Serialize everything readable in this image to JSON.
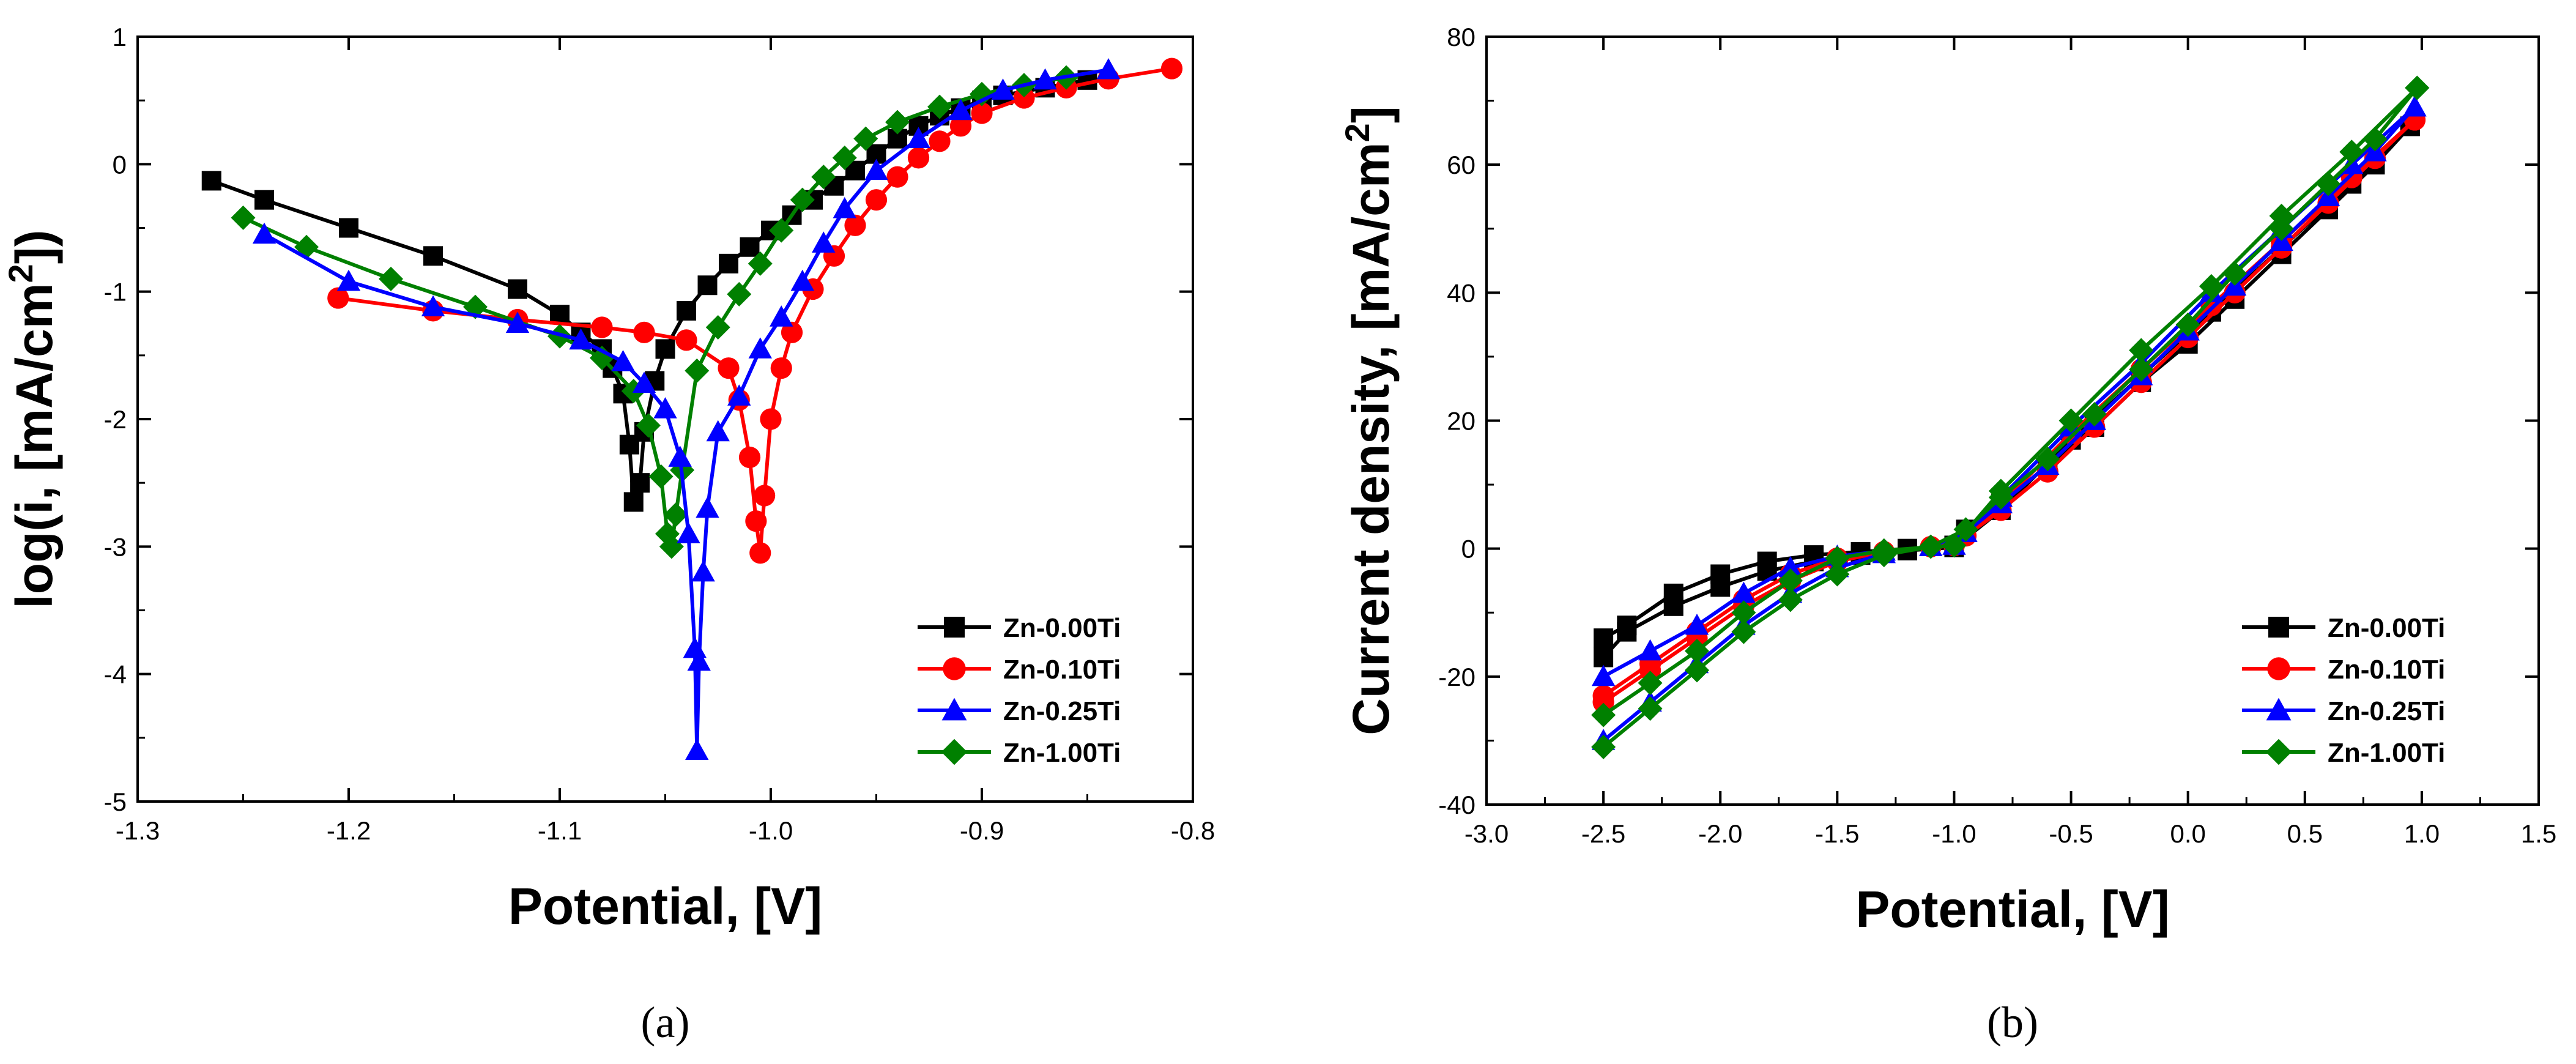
{
  "chart_data": [
    {
      "type": "line",
      "panel_label": "(a)",
      "xlabel": "Potential, [V]",
      "ylabel_main": "log(i, [mA/cm",
      "ylabel_sup": "2",
      "ylabel_tail": "])",
      "xlim": [
        -1.3,
        -0.8
      ],
      "ylim": [
        -5,
        1
      ],
      "xticks": [
        -1.3,
        -1.2,
        -1.1,
        -1.0,
        -0.9,
        -0.8
      ],
      "yticks": [
        -5,
        -4,
        -3,
        -2,
        -1,
        0,
        1
      ],
      "xtick_labels": [
        "-1.3",
        "-1.2",
        "-1.1",
        "-1.0",
        "-0.9",
        "-0.8"
      ],
      "ytick_labels": [
        "-5",
        "-4",
        "-3",
        "-2",
        "-1",
        "0",
        "1"
      ],
      "legend_position": "bottom-right",
      "series": [
        {
          "name": "Zn-0.00Ti",
          "color": "#000000",
          "marker": "square",
          "x": [
            -1.265,
            -1.24,
            -1.2,
            -1.16,
            -1.12,
            -1.1,
            -1.09,
            -1.08,
            -1.075,
            -1.07,
            -1.067,
            -1.065,
            -1.062,
            -1.06,
            -1.055,
            -1.05,
            -1.04,
            -1.03,
            -1.02,
            -1.01,
            -1.0,
            -0.99,
            -0.98,
            -0.97,
            -0.96,
            -0.95,
            -0.94,
            -0.93,
            -0.92,
            -0.91,
            -0.9,
            -0.89,
            -0.87,
            -0.85
          ],
          "y": [
            -0.13,
            -0.28,
            -0.5,
            -0.72,
            -0.98,
            -1.18,
            -1.32,
            -1.45,
            -1.6,
            -1.8,
            -2.2,
            -2.65,
            -2.5,
            -2.1,
            -1.7,
            -1.45,
            -1.15,
            -0.95,
            -0.78,
            -0.65,
            -0.52,
            -0.4,
            -0.28,
            -0.17,
            -0.05,
            0.08,
            0.2,
            0.3,
            0.38,
            0.44,
            0.5,
            0.54,
            0.6,
            0.66
          ]
        },
        {
          "name": "Zn-0.10Ti",
          "color": "#ff0000",
          "marker": "circle",
          "x": [
            -1.205,
            -1.16,
            -1.12,
            -1.08,
            -1.06,
            -1.04,
            -1.02,
            -1.015,
            -1.01,
            -1.007,
            -1.005,
            -1.003,
            -1.0,
            -0.995,
            -0.99,
            -0.98,
            -0.97,
            -0.96,
            -0.95,
            -0.94,
            -0.93,
            -0.92,
            -0.91,
            -0.9,
            -0.88,
            -0.86,
            -0.84,
            -0.81
          ],
          "y": [
            -1.05,
            -1.15,
            -1.22,
            -1.28,
            -1.32,
            -1.38,
            -1.6,
            -1.85,
            -2.3,
            -2.8,
            -3.05,
            -2.6,
            -2.0,
            -1.6,
            -1.32,
            -0.98,
            -0.72,
            -0.48,
            -0.28,
            -0.1,
            0.05,
            0.18,
            0.3,
            0.4,
            0.52,
            0.6,
            0.67,
            0.75
          ]
        },
        {
          "name": "Zn-1.00Ti",
          "color": "#008000",
          "marker": "diamond",
          "x": [
            -1.25,
            -1.22,
            -1.18,
            -1.14,
            -1.1,
            -1.08,
            -1.065,
            -1.058,
            -1.052,
            -1.049,
            -1.047,
            -1.045,
            -1.042,
            -1.035,
            -1.025,
            -1.015,
            -1.005,
            -0.995,
            -0.985,
            -0.975,
            -0.965,
            -0.955,
            -0.94,
            -0.92,
            -0.9,
            -0.88,
            -0.86
          ],
          "y": [
            -0.42,
            -0.65,
            -0.9,
            -1.12,
            -1.35,
            -1.52,
            -1.78,
            -2.05,
            -2.45,
            -2.9,
            -3.0,
            -2.75,
            -2.4,
            -1.62,
            -1.28,
            -1.02,
            -0.78,
            -0.52,
            -0.28,
            -0.1,
            0.05,
            0.2,
            0.33,
            0.45,
            0.55,
            0.62,
            0.68
          ]
        },
        {
          "name": "Zn-0.25Ti",
          "color": "#0000ff",
          "marker": "triangle",
          "x": [
            -1.24,
            -1.2,
            -1.16,
            -1.12,
            -1.09,
            -1.07,
            -1.06,
            -1.05,
            -1.043,
            -1.039,
            -1.036,
            -1.035,
            -1.034,
            -1.032,
            -1.03,
            -1.025,
            -1.015,
            -1.005,
            -0.995,
            -0.985,
            -0.975,
            -0.965,
            -0.95,
            -0.93,
            -0.91,
            -0.89,
            -0.87,
            -0.84
          ],
          "y": [
            -0.55,
            -0.92,
            -1.12,
            -1.25,
            -1.38,
            -1.55,
            -1.72,
            -1.92,
            -2.3,
            -2.9,
            -3.8,
            -4.6,
            -3.9,
            -3.2,
            -2.7,
            -2.1,
            -1.82,
            -1.45,
            -1.2,
            -0.92,
            -0.62,
            -0.35,
            -0.05,
            0.2,
            0.42,
            0.58,
            0.66,
            0.74
          ]
        }
      ]
    },
    {
      "type": "line",
      "panel_label": "(b)",
      "xlabel": "Potential, [V]",
      "ylabel_main": "Current density, [mA/cm",
      "ylabel_sup": "2",
      "ylabel_tail": "]",
      "xlim": [
        -3.0,
        1.5
      ],
      "ylim": [
        -40,
        80
      ],
      "xticks": [
        -3.0,
        -2.5,
        -2.0,
        -1.5,
        -1.0,
        -0.5,
        0.0,
        0.5,
        1.0,
        1.5
      ],
      "yticks": [
        -40,
        -20,
        0,
        20,
        40,
        60,
        80
      ],
      "xtick_labels": [
        "-3.0",
        "-2.5",
        "-2.0",
        "-1.5",
        "-1.0",
        "-0.5",
        "0.0",
        "0.5",
        "1.0",
        "1.5"
      ],
      "ytick_labels": [
        "-40",
        "-20",
        "0",
        "20",
        "40",
        "60",
        "80"
      ],
      "legend_position": "bottom-right",
      "series": [
        {
          "name": "Zn-0.00Ti",
          "color": "#000000",
          "marker": "square",
          "x": [
            -2.5,
            -2.4,
            -2.2,
            -2.0,
            -1.8,
            -1.6,
            -1.4,
            -1.2,
            -1.0,
            -0.95,
            -0.8,
            -0.6,
            -0.4,
            -0.2,
            0.0,
            0.2,
            0.4,
            0.6,
            0.8,
            0.95,
            0.95,
            0.7,
            0.4,
            0.1,
            -0.2,
            -0.5,
            -0.8,
            -1.0,
            -1.2,
            -1.4,
            -1.6,
            -1.8,
            -2.0,
            -2.2,
            -2.4,
            -2.5
          ],
          "y": [
            -14,
            -12,
            -7,
            -4,
            -2,
            -1,
            -0.5,
            0,
            0.5,
            3,
            7,
            13,
            19,
            26,
            32,
            39,
            46,
            53,
            60,
            66,
            66,
            57,
            47,
            37,
            27,
            17,
            6,
            0.2,
            -0.3,
            -1,
            -2,
            -3.5,
            -6,
            -9,
            -13,
            -17
          ]
        },
        {
          "name": "Zn-0.10Ti",
          "color": "#ff0000",
          "marker": "circle",
          "x": [
            -2.5,
            -2.3,
            -2.1,
            -1.9,
            -1.7,
            -1.5,
            -1.3,
            -1.1,
            -0.95,
            -0.8,
            -0.6,
            -0.4,
            -0.2,
            0.0,
            0.2,
            0.4,
            0.6,
            0.8,
            0.97,
            0.97,
            0.7,
            0.4,
            0.1,
            -0.2,
            -0.5,
            -0.8,
            -1.0,
            -1.3,
            -1.5,
            -1.7,
            -1.9,
            -2.1,
            -2.3,
            -2.5
          ],
          "y": [
            -24,
            -19,
            -14,
            -9,
            -5,
            -2,
            -0.5,
            0.3,
            2,
            6,
            12,
            19,
            26,
            33,
            40,
            47,
            54,
            61,
            67,
            67,
            58,
            48,
            38,
            28,
            18,
            7,
            0.5,
            -0.5,
            -1.5,
            -4,
            -8,
            -13,
            -18,
            -23
          ]
        },
        {
          "name": "Zn-0.25Ti",
          "color": "#0000ff",
          "marker": "triangle",
          "x": [
            -2.5,
            -2.3,
            -2.1,
            -1.9,
            -1.7,
            -1.5,
            -1.3,
            -1.1,
            -0.95,
            -0.8,
            -0.6,
            -0.4,
            -0.2,
            0.0,
            0.2,
            0.4,
            0.6,
            0.8,
            0.97,
            0.97,
            0.7,
            0.4,
            0.1,
            -0.2,
            -0.5,
            -0.8,
            -1.0,
            -1.3,
            -1.5,
            -1.7,
            -1.9,
            -2.1,
            -2.3,
            -2.5
          ],
          "y": [
            -30,
            -24,
            -18,
            -12,
            -7,
            -3,
            -0.8,
            0.3,
            2.5,
            7,
            13,
            20,
            27,
            34,
            41,
            48,
            55,
            62,
            69,
            69,
            60,
            50,
            40,
            29,
            19,
            8,
            0.5,
            -0.4,
            -1.2,
            -3,
            -7,
            -12,
            -16,
            -20
          ]
        },
        {
          "name": "Zn-1.00Ti",
          "color": "#008000",
          "marker": "diamond",
          "x": [
            -2.5,
            -2.3,
            -2.1,
            -1.9,
            -1.7,
            -1.5,
            -1.3,
            -1.1,
            -0.95,
            -0.8,
            -0.6,
            -0.4,
            -0.2,
            0.0,
            0.2,
            0.4,
            0.6,
            0.8,
            0.98,
            0.98,
            0.7,
            0.4,
            0.1,
            -0.2,
            -0.5,
            -0.8,
            -1.0,
            -1.3,
            -1.5,
            -1.7,
            -1.9,
            -2.1,
            -2.3,
            -2.5
          ],
          "y": [
            -31,
            -25,
            -19,
            -13,
            -8,
            -4,
            -1,
            0.3,
            3,
            8,
            14,
            21,
            28,
            35,
            43,
            50,
            57,
            64,
            72,
            72,
            62,
            52,
            41,
            31,
            20,
            9,
            0.5,
            -0.3,
            -1.5,
            -5,
            -10,
            -16,
            -21,
            -26
          ]
        }
      ]
    }
  ]
}
